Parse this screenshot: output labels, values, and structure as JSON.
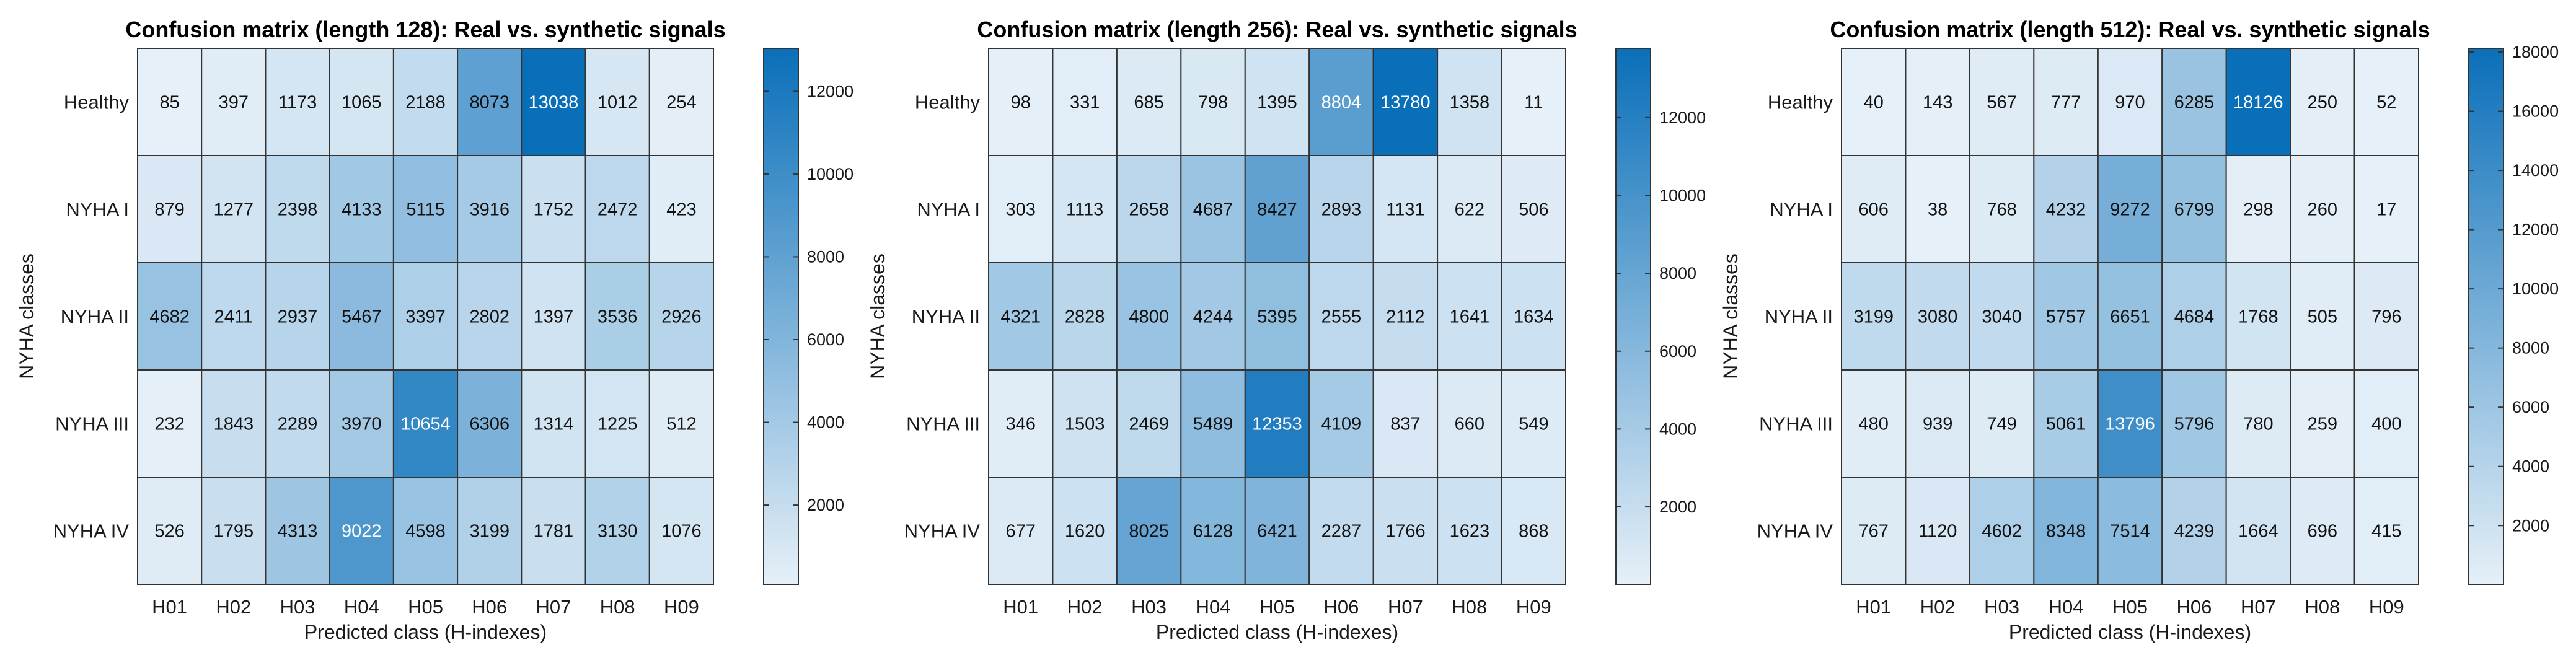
{
  "chart_data": [
    {
      "type": "heatmap",
      "title": "Confusion matrix (length 128): Real vs. synthetic signals",
      "xlabel": "Predicted class (H-indexes)",
      "ylabel": "NYHA classes",
      "rows": [
        "Healthy",
        "NYHA I",
        "NYHA II",
        "NYHA III",
        "NYHA IV"
      ],
      "columns": [
        "H01",
        "H02",
        "H03",
        "H04",
        "H05",
        "H06",
        "H07",
        "H08",
        "H09"
      ],
      "values": [
        [
          85,
          397,
          1173,
          1065,
          2188,
          8073,
          13038,
          1012,
          254
        ],
        [
          879,
          1277,
          2398,
          4133,
          5115,
          3916,
          1752,
          2472,
          423
        ],
        [
          4682,
          2411,
          2937,
          5467,
          3397,
          2802,
          1397,
          3536,
          2926
        ],
        [
          232,
          1843,
          2289,
          3970,
          10654,
          6306,
          1314,
          1225,
          512
        ],
        [
          526,
          1795,
          4313,
          9022,
          4598,
          3199,
          1781,
          3130,
          1076
        ]
      ],
      "colorbar": {
        "range": [
          85,
          13038
        ],
        "ticks": [
          "2000",
          "4000",
          "6000",
          "8000",
          "10000",
          "12000"
        ]
      }
    },
    {
      "type": "heatmap",
      "title": "Confusion matrix (length 256): Real vs. synthetic signals",
      "xlabel": "Predicted class (H-indexes)",
      "ylabel": "NYHA classes",
      "rows": [
        "Healthy",
        "NYHA I",
        "NYHA II",
        "NYHA III",
        "NYHA IV"
      ],
      "columns": [
        "H01",
        "H02",
        "H03",
        "H04",
        "H05",
        "H06",
        "H07",
        "H08",
        "H09"
      ],
      "values": [
        [
          98,
          331,
          685,
          798,
          1395,
          8804,
          13780,
          1358,
          11
        ],
        [
          303,
          1113,
          2658,
          4687,
          8427,
          2893,
          1131,
          622,
          506
        ],
        [
          4321,
          2828,
          4800,
          4244,
          5395,
          2555,
          2112,
          1641,
          1634
        ],
        [
          346,
          1503,
          2469,
          5489,
          12353,
          4109,
          837,
          660,
          549
        ],
        [
          677,
          1620,
          8025,
          6128,
          6421,
          2287,
          1766,
          1623,
          868
        ]
      ],
      "colorbar": {
        "range": [
          11,
          13780
        ],
        "ticks": [
          "2000",
          "4000",
          "6000",
          "8000",
          "10000",
          "12000"
        ]
      }
    },
    {
      "type": "heatmap",
      "title": "Confusion matrix (length 512): Real vs. synthetic signals",
      "xlabel": "Predicted class (H-indexes)",
      "ylabel": "NYHA classes",
      "rows": [
        "Healthy",
        "NYHA I",
        "NYHA II",
        "NYHA III",
        "NYHA IV"
      ],
      "columns": [
        "H01",
        "H02",
        "H03",
        "H04",
        "H05",
        "H06",
        "H07",
        "H08",
        "H09"
      ],
      "values": [
        [
          40,
          143,
          567,
          777,
          970,
          6285,
          18126,
          250,
          52
        ],
        [
          606,
          38,
          768,
          4232,
          9272,
          6799,
          298,
          260,
          17
        ],
        [
          3199,
          3080,
          3040,
          5757,
          6651,
          4684,
          1768,
          505,
          796
        ],
        [
          480,
          939,
          749,
          5061,
          13796,
          5796,
          780,
          259,
          400
        ],
        [
          767,
          1120,
          4602,
          8348,
          7514,
          4239,
          1664,
          696,
          415
        ]
      ],
      "colorbar": {
        "range": [
          17,
          18126
        ],
        "ticks": [
          "2000",
          "4000",
          "6000",
          "8000",
          "10000",
          "12000",
          "14000",
          "16000",
          "18000"
        ]
      }
    }
  ],
  "colors": {
    "low": "#e6f0f8",
    "high": "#0a6fb9",
    "text_dark": "#111111",
    "text_light": "#ffffff",
    "grid": "#333333"
  }
}
